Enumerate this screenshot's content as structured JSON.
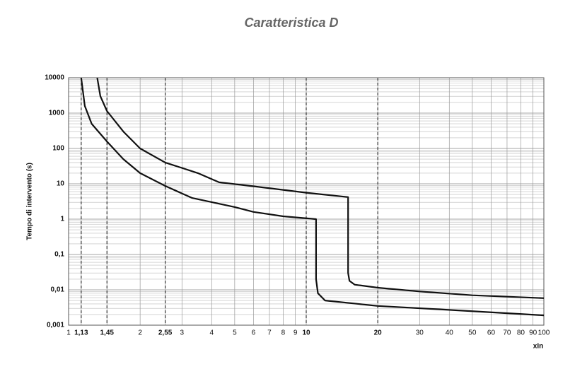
{
  "chart_data": {
    "type": "line",
    "title": "Caratteristica D",
    "ylabel": "Tempo di intervento (s)",
    "xlabel": "xIn",
    "xscale": "log",
    "yscale": "log",
    "grid": true,
    "xlim": [
      1,
      100
    ],
    "ylim": [
      0.001,
      10000
    ],
    "xticks": [
      1,
      {
        "value": 1.13,
        "label": "1,13"
      },
      {
        "value": 1.45,
        "label": "1,45"
      },
      2,
      {
        "value": 2.55,
        "label": "2,55"
      },
      3,
      4,
      5,
      6,
      7,
      8,
      9,
      10,
      20,
      30,
      40,
      50,
      60,
      70,
      80,
      90,
      100
    ],
    "yticks": [
      {
        "value": 0.001,
        "label": "0,001"
      },
      {
        "value": 0.01,
        "label": "0,01"
      },
      {
        "value": 0.1,
        "label": "0,1"
      },
      1,
      10,
      100,
      1000,
      10000
    ],
    "highlight_x": [
      1.13,
      1.45,
      2.55,
      10,
      20
    ],
    "series": [
      {
        "color": "#111111",
        "x": [
          1.32,
          1.36,
          1.45,
          1.7,
          2,
          2.55,
          3.5,
          4.3,
          6,
          10,
          15,
          15,
          15.2,
          16,
          20,
          30,
          50,
          100
        ],
        "values": [
          10000,
          3000,
          1150,
          300,
          100,
          40,
          20,
          11,
          8.5,
          5.6,
          4.2,
          0.03,
          0.018,
          0.014,
          0.0115,
          0.009,
          0.007,
          0.0058
        ]
      },
      {
        "color": "#111111",
        "x": [
          1.13,
          1.17,
          1.25,
          1.45,
          1.7,
          2,
          2.55,
          3.3,
          5,
          6,
          8,
          11,
          11,
          11.2,
          12,
          20,
          40,
          100
        ],
        "values": [
          10000,
          1600,
          500,
          158,
          50,
          20,
          8.7,
          4,
          2.2,
          1.6,
          1.2,
          1,
          0.02,
          0.008,
          0.005,
          0.0035,
          0.0027,
          0.0019
        ]
      }
    ]
  }
}
